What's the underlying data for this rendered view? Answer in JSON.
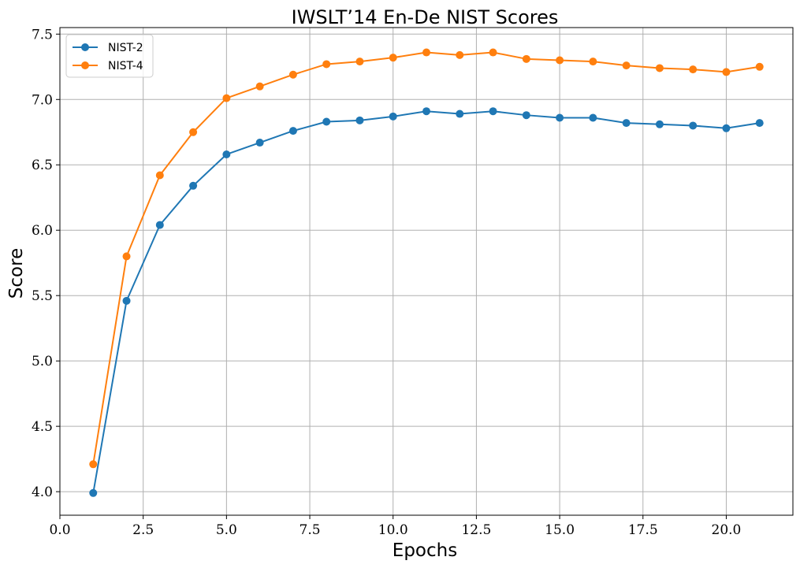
{
  "chart_data": {
    "type": "line",
    "title": "IWSLT’14 En-De NIST Scores",
    "xlabel": "Epochs",
    "ylabel": "Score",
    "xlim": [
      0,
      22.0
    ],
    "ylim": [
      3.82,
      7.55
    ],
    "xticks": [
      0.0,
      2.5,
      5.0,
      7.5,
      10.0,
      12.5,
      15.0,
      17.5,
      20.0
    ],
    "xtick_labels": [
      "0.0",
      "2.5",
      "5.0",
      "7.5",
      "10.0",
      "12.5",
      "15.0",
      "17.5",
      "20.0"
    ],
    "yticks": [
      4.0,
      4.5,
      5.0,
      5.5,
      6.0,
      6.5,
      7.0,
      7.5
    ],
    "ytick_labels": [
      "4.0",
      "4.5",
      "5.0",
      "5.5",
      "6.0",
      "6.5",
      "7.0",
      "7.5"
    ],
    "grid": true,
    "legend_position": "top-left",
    "x": [
      1,
      2,
      3,
      4,
      5,
      6,
      7,
      8,
      9,
      10,
      11,
      12,
      13,
      14,
      15,
      16,
      17,
      18,
      19,
      20,
      21
    ],
    "series": [
      {
        "name": "NIST-2",
        "color": "#1f77b4",
        "values": [
          3.99,
          5.46,
          6.04,
          6.34,
          6.58,
          6.67,
          6.76,
          6.83,
          6.84,
          6.87,
          6.91,
          6.89,
          6.91,
          6.88,
          6.86,
          6.86,
          6.82,
          6.81,
          6.8,
          6.78,
          6.82
        ]
      },
      {
        "name": "NIST-4",
        "color": "#ff7f0e",
        "values": [
          4.21,
          5.8,
          6.42,
          6.75,
          7.01,
          7.1,
          7.19,
          7.27,
          7.29,
          7.32,
          7.36,
          7.34,
          7.36,
          7.31,
          7.3,
          7.29,
          7.26,
          7.24,
          7.23,
          7.21,
          7.25
        ]
      }
    ]
  }
}
